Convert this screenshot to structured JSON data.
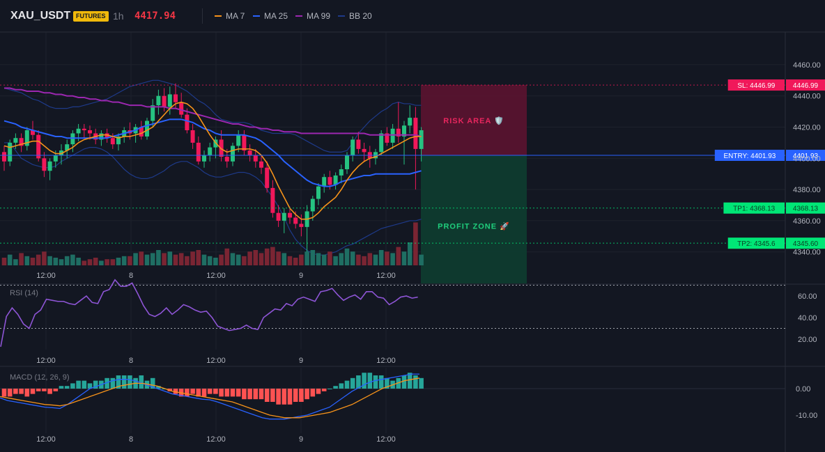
{
  "header": {
    "symbol": "XAU_USDT",
    "badge": "FUTURES",
    "timeframe": "1h",
    "price": "4417.94",
    "legend": [
      {
        "label": "MA 7",
        "color": "#f7931a"
      },
      {
        "label": "MA 25",
        "color": "#2962ff"
      },
      {
        "label": "MA 99",
        "color": "#9c27b0"
      },
      {
        "label": "BB 20",
        "color": "#1e3a8a"
      }
    ]
  },
  "colors": {
    "background": "#131722",
    "up": "#26c281",
    "down": "#f0185a",
    "risk_fill": "#5a1330",
    "profit_fill": "#0e3b2f",
    "entry_line": "#2962ff",
    "sl_label": "#f0185a",
    "entry_label": "#2962ff",
    "tp_label": "#00e676",
    "rsi_line": "#8e55d6",
    "macd_line": "#2962ff",
    "signal_line": "#f7931a"
  },
  "price_axis": {
    "ticks": [
      "4460.00",
      "4440.00",
      "4420.00",
      "4400.00",
      "4380.00",
      "4360.00",
      "4340.00"
    ]
  },
  "time_axis": {
    "ticks": [
      "12:00",
      "8",
      "12:00",
      "9",
      "12:00"
    ]
  },
  "trade": {
    "risk_label": "RISK AREA 🛡️",
    "profit_label": "PROFIT ZONE 🚀",
    "levels": [
      {
        "name": "sl",
        "label": "SL: 4446.99",
        "value": "4446.99",
        "price": 4446.99
      },
      {
        "name": "entry",
        "label": "ENTRY: 4401.93",
        "value": "4401.93",
        "price": 4401.93
      },
      {
        "name": "tp1",
        "label": "TP1: 4368.13",
        "value": "4368.13",
        "price": 4368.13
      },
      {
        "name": "tp2",
        "label": "TP2: 4345.6",
        "value": "4345.60",
        "price": 4345.6
      }
    ]
  },
  "rsi": {
    "title": "RSI (14)",
    "ticks": [
      "60.00",
      "40.00",
      "20.00"
    ],
    "overbought": 70,
    "oversold": 30
  },
  "macd": {
    "title": "MACD (12, 26, 9)",
    "ticks": [
      "0.00",
      "-10.00"
    ]
  },
  "chart_data": {
    "type": "candlestick",
    "ylim": [
      4333,
      4470
    ],
    "ohlc": [
      [
        4404,
        4408,
        4392,
        4398
      ],
      [
        4398,
        4412,
        4395,
        4410
      ],
      [
        4410,
        4416,
        4406,
        4413
      ],
      [
        4413,
        4416,
        4404,
        4408
      ],
      [
        4408,
        4420,
        4405,
        4418
      ],
      [
        4418,
        4424,
        4412,
        4415
      ],
      [
        4415,
        4418,
        4398,
        4400
      ],
      [
        4400,
        4404,
        4388,
        4392
      ],
      [
        4392,
        4400,
        4386,
        4398
      ],
      [
        4398,
        4405,
        4394,
        4402
      ],
      [
        4402,
        4409,
        4396,
        4405
      ],
      [
        4405,
        4412,
        4400,
        4409
      ],
      [
        4409,
        4418,
        4404,
        4416
      ],
      [
        4416,
        4422,
        4411,
        4419
      ],
      [
        4419,
        4422,
        4413,
        4418
      ],
      [
        4418,
        4421,
        4412,
        4416
      ],
      [
        4416,
        4419,
        4409,
        4412
      ],
      [
        4412,
        4418,
        4408,
        4416
      ],
      [
        4416,
        4419,
        4410,
        4413
      ],
      [
        4413,
        4416,
        4406,
        4409
      ],
      [
        4409,
        4416,
        4405,
        4414
      ],
      [
        4414,
        4420,
        4410,
        4418
      ],
      [
        4418,
        4423,
        4412,
        4416
      ],
      [
        4416,
        4422,
        4410,
        4420
      ],
      [
        4420,
        4424,
        4412,
        4414
      ],
      [
        4414,
        4426,
        4412,
        4424
      ],
      [
        4424,
        4438,
        4420,
        4434
      ],
      [
        4434,
        4444,
        4428,
        4440
      ],
      [
        4440,
        4445,
        4430,
        4433
      ],
      [
        4433,
        4446,
        4428,
        4441
      ],
      [
        4441,
        4448,
        4432,
        4436
      ],
      [
        4436,
        4442,
        4426,
        4428
      ],
      [
        4428,
        4432,
        4416,
        4418
      ],
      [
        4418,
        4422,
        4406,
        4410
      ],
      [
        4410,
        4414,
        4396,
        4398
      ],
      [
        4398,
        4405,
        4394,
        4402
      ],
      [
        4402,
        4410,
        4398,
        4407
      ],
      [
        4407,
        4414,
        4400,
        4412
      ],
      [
        4412,
        4418,
        4398,
        4401
      ],
      [
        4401,
        4406,
        4394,
        4398
      ],
      [
        4398,
        4410,
        4395,
        4408
      ],
      [
        4408,
        4418,
        4404,
        4415
      ],
      [
        4415,
        4418,
        4402,
        4405
      ],
      [
        4405,
        4409,
        4398,
        4402
      ],
      [
        4402,
        4406,
        4394,
        4398
      ],
      [
        4398,
        4402,
        4390,
        4394
      ],
      [
        4394,
        4398,
        4378,
        4381
      ],
      [
        4381,
        4386,
        4362,
        4365
      ],
      [
        4365,
        4370,
        4356,
        4360
      ],
      [
        4360,
        4368,
        4352,
        4365
      ],
      [
        4365,
        4369,
        4358,
        4362
      ],
      [
        4362,
        4366,
        4355,
        4358
      ],
      [
        4358,
        4364,
        4350,
        4356
      ],
      [
        4356,
        4370,
        4340,
        4366
      ],
      [
        4366,
        4376,
        4360,
        4374
      ],
      [
        4374,
        4384,
        4370,
        4382
      ],
      [
        4382,
        4390,
        4378,
        4388
      ],
      [
        4388,
        4392,
        4380,
        4383
      ],
      [
        4383,
        4391,
        4380,
        4389
      ],
      [
        4389,
        4396,
        4384,
        4393
      ],
      [
        4393,
        4404,
        4390,
        4402
      ],
      [
        4402,
        4414,
        4398,
        4412
      ],
      [
        4412,
        4417,
        4403,
        4406
      ],
      [
        4406,
        4410,
        4398,
        4404
      ],
      [
        4404,
        4408,
        4394,
        4400
      ],
      [
        4400,
        4406,
        4396,
        4404
      ],
      [
        4404,
        4418,
        4402,
        4416
      ],
      [
        4416,
        4420,
        4408,
        4410
      ],
      [
        4410,
        4422,
        4406,
        4419
      ],
      [
        4419,
        4436,
        4410,
        4414
      ],
      [
        4414,
        4424,
        4396,
        4421
      ],
      [
        4421,
        4434,
        4416,
        4426
      ],
      [
        4426,
        4433,
        4380,
        4406
      ],
      [
        4406,
        4420,
        4398,
        4418
      ]
    ],
    "volume": [
      5,
      7,
      4,
      8,
      6,
      5,
      7,
      9,
      6,
      5,
      4,
      6,
      7,
      5,
      3,
      4,
      5,
      3,
      4,
      4,
      5,
      6,
      6,
      8,
      9,
      7,
      8,
      10,
      8,
      9,
      7,
      8,
      6,
      9,
      10,
      7,
      6,
      5,
      7,
      11,
      8,
      7,
      6,
      9,
      10,
      8,
      11,
      12,
      9,
      8,
      6,
      5,
      7,
      9,
      10,
      8,
      7,
      9,
      6,
      8,
      11,
      9,
      7,
      6,
      8,
      7,
      10,
      9,
      8,
      12,
      9,
      15,
      28,
      7
    ],
    "ma7": [
      4408,
      4407,
      4408,
      4409,
      4410,
      4411,
      4411,
      4408,
      4405,
      4403,
      4403,
      4405,
      4407,
      4410,
      4412,
      4413,
      4414,
      4415,
      4415,
      4414,
      4413,
      4414,
      4414,
      4415,
      4416,
      4418,
      4420,
      4424,
      4428,
      4432,
      4435,
      4436,
      4435,
      4432,
      4427,
      4421,
      4415,
      4410,
      4406,
      4404,
      4405,
      4406,
      4406,
      4406,
      4405,
      4402,
      4397,
      4390,
      4382,
      4375,
      4368,
      4364,
      4361,
      4361,
      4362,
      4365,
      4369,
      4372,
      4375,
      4380,
      4386,
      4391,
      4395,
      4398,
      4400,
      4401,
      4403,
      4405,
      4407,
      4409,
      4411,
      4413,
      4414,
      4414
    ],
    "ma25": [
      4424,
      4423,
      4422,
      4420,
      4419,
      4418,
      4417,
      4416,
      4415,
      4414,
      4414,
      4413,
      4413,
      4413,
      4413,
      4413,
      4413,
      4413,
      4413,
      4414,
      4415,
      4416,
      4417,
      4418,
      4420,
      4421,
      4422,
      4423,
      4424,
      4425,
      4425,
      4425,
      4424,
      4423,
      4421,
      4419,
      4418,
      4416,
      4415,
      4415,
      4415,
      4415,
      4415,
      4414,
      4413,
      4411,
      4408,
      4405,
      4402,
      4398,
      4395,
      4392,
      4389,
      4386,
      4384,
      4383,
      4382,
      4382,
      4383,
      4385,
      4386,
      4387,
      4388,
      4389,
      4389,
      4390,
      4390,
      4390,
      4390,
      4390,
      4390,
      4390,
      4391,
      4392
    ],
    "ma99": [
      4445,
      4445,
      4444,
      4444,
      4443,
      4443,
      4443,
      4442,
      4442,
      4441,
      4441,
      4440,
      4440,
      4439,
      4439,
      4438,
      4438,
      4437,
      4437,
      4436,
      4436,
      4435,
      4434,
      4434,
      4434,
      4433,
      4433,
      4433,
      4433,
      4432,
      4432,
      4431,
      4430,
      4429,
      4428,
      4427,
      4426,
      4425,
      4424,
      4423,
      4422,
      4422,
      4421,
      4420,
      4420,
      4419,
      4419,
      4418,
      4418,
      4417,
      4417,
      4417,
      4416,
      4416,
      4416,
      4416,
      4416,
      4416,
      4416,
      4416,
      4416,
      4416,
      4416,
      4416,
      4415,
      4415,
      4415,
      4415,
      4415,
      4415,
      4415,
      4415,
      4415,
      4414
    ],
    "bb_upper": [
      4445,
      4444,
      4443,
      4442,
      4440,
      4438,
      4437,
      4435,
      4433,
      4432,
      4432,
      4432,
      4433,
      4433,
      4434,
      4435,
      4436,
      4437,
      4438,
      4440,
      4442,
      4444,
      4446,
      4447,
      4448,
      4449,
      4450,
      4450,
      4449,
      4448,
      4447,
      4445,
      4443,
      4440,
      4437,
      4435,
      4432,
      4428,
      4425,
      4424,
      4423,
      4423,
      4423,
      4422,
      4420,
      4418,
      4417,
      4416,
      4416,
      4416,
      4416,
      4415,
      4413,
      4411,
      4409,
      4407,
      4405,
      4404,
      4404,
      4404,
      4405,
      4410,
      4416,
      4420,
      4424,
      4427,
      4430,
      4432,
      4435,
      4436,
      4435,
      4435,
      4434,
      4434
    ],
    "bb_lower": [
      4410,
      4410,
      4405,
      4400,
      4398,
      4396,
      4395,
      4394,
      4394,
      4395,
      4398,
      4400,
      4402,
      4404,
      4406,
      4407,
      4407,
      4406,
      4404,
      4401,
      4397,
      4393,
      4390,
      4388,
      4387,
      4387,
      4388,
      4390,
      4392,
      4395,
      4397,
      4398,
      4398,
      4396,
      4394,
      4391,
      4389,
      4388,
      4388,
      4389,
      4390,
      4391,
      4391,
      4390,
      4388,
      4385,
      4380,
      4375,
      4369,
      4362,
      4354,
      4348,
      4344,
      4341,
      4339,
      4338,
      4338,
      4339,
      4340,
      4342,
      4344,
      4345,
      4347,
      4349,
      4351,
      4353,
      4355,
      4356,
      4357,
      4358,
      4359,
      4360,
      4360,
      4361
    ],
    "rsi": [
      13,
      41,
      49,
      43,
      34,
      30,
      43,
      47,
      57,
      56,
      55,
      55,
      53,
      52,
      56,
      60,
      54,
      53,
      64,
      66,
      75,
      69,
      69,
      72,
      62,
      51,
      43,
      41,
      44,
      49,
      43,
      47,
      52,
      50,
      47,
      45,
      46,
      40,
      32,
      30,
      28,
      29,
      30,
      33,
      30,
      29,
      40,
      44,
      48,
      47,
      53,
      51,
      57,
      59,
      57,
      55,
      64,
      65,
      67,
      61,
      56,
      59,
      61,
      57,
      64,
      64,
      59,
      58,
      52,
      55,
      59,
      60,
      58,
      59
    ],
    "macd_hist": [
      -3,
      -3,
      -2,
      -2,
      -3,
      -2,
      -1,
      -1,
      -2,
      -1,
      1,
      1,
      2,
      3,
      3,
      2,
      3,
      3,
      4,
      4,
      5,
      5,
      5,
      4,
      5,
      3,
      4,
      1,
      0,
      -1,
      -2,
      -3,
      -3,
      -2,
      -3,
      -3,
      -2,
      -2,
      -3,
      -3,
      -3,
      -3,
      -4,
      -4,
      -4,
      -4,
      -5,
      -5,
      -6,
      -6,
      -6,
      -5,
      -5,
      -4,
      -3,
      -2,
      -1,
      0,
      1,
      2,
      3,
      4,
      5,
      6,
      6,
      5,
      5,
      4,
      3,
      4,
      5,
      6,
      5,
      4
    ],
    "macd": [
      -3.5,
      -4.5,
      -5,
      -5.5,
      -6,
      -6.5,
      -7,
      -7.2,
      -7.5,
      -6,
      -4,
      -2,
      0,
      1,
      2,
      3,
      3.5,
      3.5,
      3,
      2,
      1,
      0,
      -1,
      -2,
      -2.5,
      -3,
      -3.5,
      -4,
      -4.2,
      -5,
      -6,
      -7,
      -8,
      -9,
      -10,
      -11,
      -11.5,
      -11.5,
      -11.5,
      -11,
      -10.5,
      -10,
      -9,
      -8,
      -7,
      -5,
      -3,
      -1,
      0.5,
      2,
      3,
      3.5,
      4,
      4.5,
      5,
      5.5,
      5.5
    ],
    "signal": [
      -3,
      -3.5,
      -4,
      -4.5,
      -5,
      -5.5,
      -6,
      -6.2,
      -6.5,
      -6,
      -5,
      -4,
      -3,
      -2,
      -1,
      0,
      1,
      1.5,
      2,
      2,
      1.5,
      1,
      0,
      -1,
      -1.5,
      -2,
      -2.5,
      -3,
      -3.5,
      -4,
      -4.5,
      -5,
      -6,
      -7,
      -8,
      -9,
      -10,
      -10.5,
      -11,
      -11,
      -11,
      -10.5,
      -10,
      -9.5,
      -9,
      -8,
      -7,
      -6,
      -4.5,
      -3,
      -1.5,
      0,
      1,
      2,
      3,
      3.5,
      4
    ]
  }
}
